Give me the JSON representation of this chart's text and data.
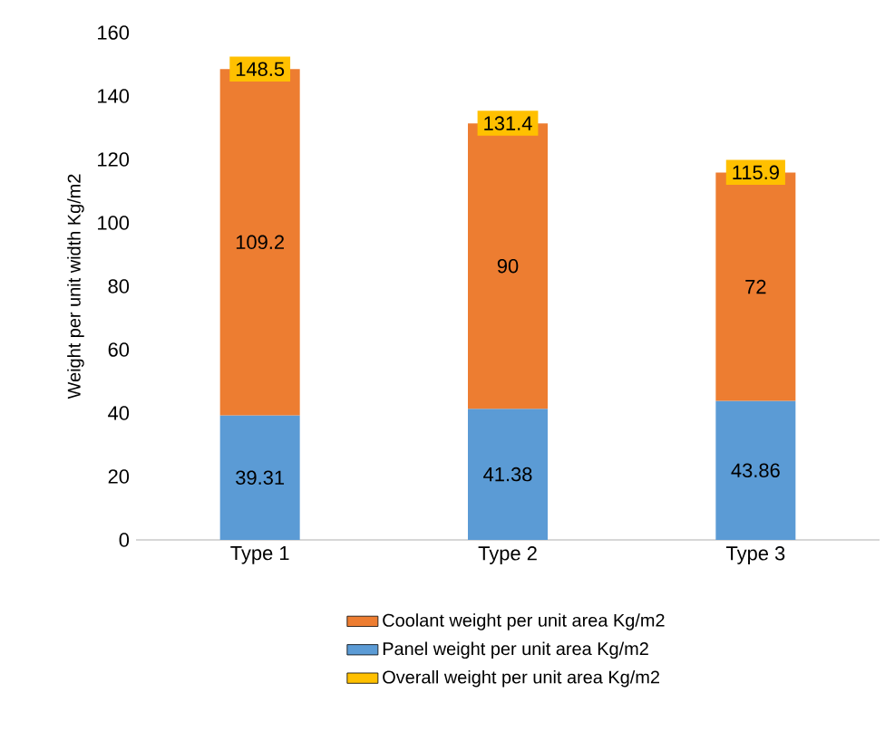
{
  "chart_data": {
    "type": "bar",
    "stacked": true,
    "ylabel": "Weight per unit width Kg/m2",
    "categories": [
      "Type 1",
      "Type 2",
      "Type 3"
    ],
    "series": [
      {
        "name": "Panel weight per unit area Kg/m2",
        "color": "#5b9bd5",
        "values": [
          39.31,
          41.38,
          43.86
        ]
      },
      {
        "name": "Coolant weight per unit area Kg/m2",
        "color": "#ed7d31",
        "values": [
          109.2,
          90,
          72
        ]
      },
      {
        "name": "Overall weight per unit area Kg/m2",
        "color": "#ffc000",
        "type": "scatter",
        "values": [
          148.5,
          131.4,
          115.9
        ]
      }
    ],
    "ylim": [
      0,
      160
    ],
    "yticks": [
      0,
      20,
      40,
      60,
      80,
      100,
      120,
      140,
      160
    ],
    "data_labels": true,
    "legend": "bottom",
    "grid": false
  }
}
